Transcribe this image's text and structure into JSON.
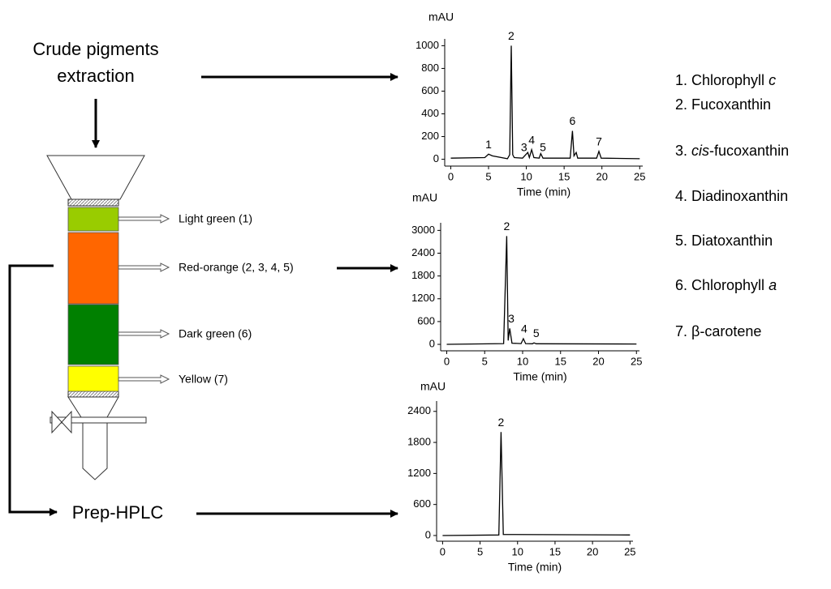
{
  "flow": {
    "extraction": [
      "Crude pigments",
      "extraction"
    ],
    "prep": "Prep-HPLC"
  },
  "column": {
    "bands": [
      {
        "label": "Light green (1)",
        "color": "#99cc00"
      },
      {
        "label": "Red-orange (2, 3, 4, 5)",
        "color": "#ff6600"
      },
      {
        "label": "Dark green (6)",
        "color": "#008000"
      },
      {
        "label": "Yellow (7)",
        "color": "#ffff00"
      }
    ]
  },
  "legend": {
    "items": [
      [
        {
          "text": "1. Chlorophyll "
        },
        {
          "text": "c",
          "italic": true
        }
      ],
      [
        {
          "text": "2. Fucoxanthin"
        }
      ],
      [
        {
          "text": "3. "
        },
        {
          "text": "cis",
          "italic": true
        },
        {
          "text": "-fucoxanthin"
        }
      ],
      [
        {
          "text": "4. Diadinoxanthin"
        }
      ],
      [
        {
          "text": "5. Diatoxanthin"
        }
      ],
      [
        {
          "text": "6. Chlorophyll "
        },
        {
          "text": "a",
          "italic": true
        }
      ],
      [
        {
          "text": "7. β-carotene"
        }
      ]
    ]
  },
  "chart_data": [
    {
      "type": "line",
      "ylabel": "mAU",
      "xlabel": "Time (min)",
      "color": "#000000",
      "x": [
        0,
        4.5,
        5,
        5.5,
        7.5,
        7.8,
        8.0,
        8.2,
        8.4,
        9.5,
        10.2,
        10.4,
        10.7,
        11,
        11.7,
        11.9,
        12.2,
        15.8,
        16.1,
        16.3,
        16.6,
        16.8,
        19.3,
        19.6,
        19.9,
        25
      ],
      "values": [
        10,
        15,
        45,
        30,
        5,
        40,
        1000,
        40,
        15,
        10,
        60,
        15,
        85,
        15,
        10,
        50,
        10,
        10,
        250,
        30,
        60,
        10,
        10,
        70,
        10,
        5
      ],
      "xlim": [
        -0.8,
        25.4
      ],
      "ylim": [
        -60,
        1060
      ],
      "xticks": [
        0,
        5,
        10,
        15,
        20,
        25
      ],
      "yticks": [
        0,
        200,
        400,
        600,
        800,
        1000
      ],
      "annotations": [
        {
          "text": "1",
          "x": 5,
          "y": 45
        },
        {
          "text": "2",
          "x": 8.0,
          "y": 1000
        },
        {
          "text": "3",
          "x": 9.7,
          "y": 20
        },
        {
          "text": "4",
          "x": 10.7,
          "y": 85
        },
        {
          "text": "5",
          "x": 12.2,
          "y": 20
        },
        {
          "text": "6",
          "x": 16.1,
          "y": 250
        },
        {
          "text": "7",
          "x": 19.6,
          "y": 70
        }
      ]
    },
    {
      "type": "line",
      "ylabel": "mAU",
      "xlabel": "Time (min)",
      "color": "#000000",
      "x": [
        0,
        7.5,
        7.9,
        8.1,
        8.3,
        8.6,
        9.8,
        10.1,
        10.4,
        11.3,
        11.5,
        11.8,
        25
      ],
      "values": [
        0,
        20,
        2850,
        100,
        420,
        30,
        20,
        150,
        20,
        15,
        40,
        15,
        10
      ],
      "xlim": [
        -0.8,
        25.4
      ],
      "ylim": [
        -170,
        3200
      ],
      "xticks": [
        0,
        5,
        10,
        15,
        20,
        25
      ],
      "yticks": [
        0,
        600,
        1200,
        1800,
        2400,
        3000
      ],
      "annotations": [
        {
          "text": "2",
          "x": 7.9,
          "y": 2850
        },
        {
          "text": "3",
          "x": 8.5,
          "y": 420
        },
        {
          "text": "4",
          "x": 10.2,
          "y": 150
        },
        {
          "text": "5",
          "x": 11.8,
          "y": 40
        }
      ]
    },
    {
      "type": "line",
      "ylabel": "mAU",
      "xlabel": "Time (min)",
      "color": "#000000",
      "x": [
        0,
        7.5,
        7.8,
        8.1,
        25
      ],
      "values": [
        0,
        10,
        2000,
        20,
        10
      ],
      "xlim": [
        -0.8,
        25.4
      ],
      "ylim": [
        -110,
        2600
      ],
      "xticks": [
        0,
        5,
        10,
        15,
        20,
        25
      ],
      "yticks": [
        0,
        600,
        1200,
        1800,
        2400
      ],
      "annotations": [
        {
          "text": "2",
          "x": 7.8,
          "y": 2000
        }
      ]
    }
  ]
}
